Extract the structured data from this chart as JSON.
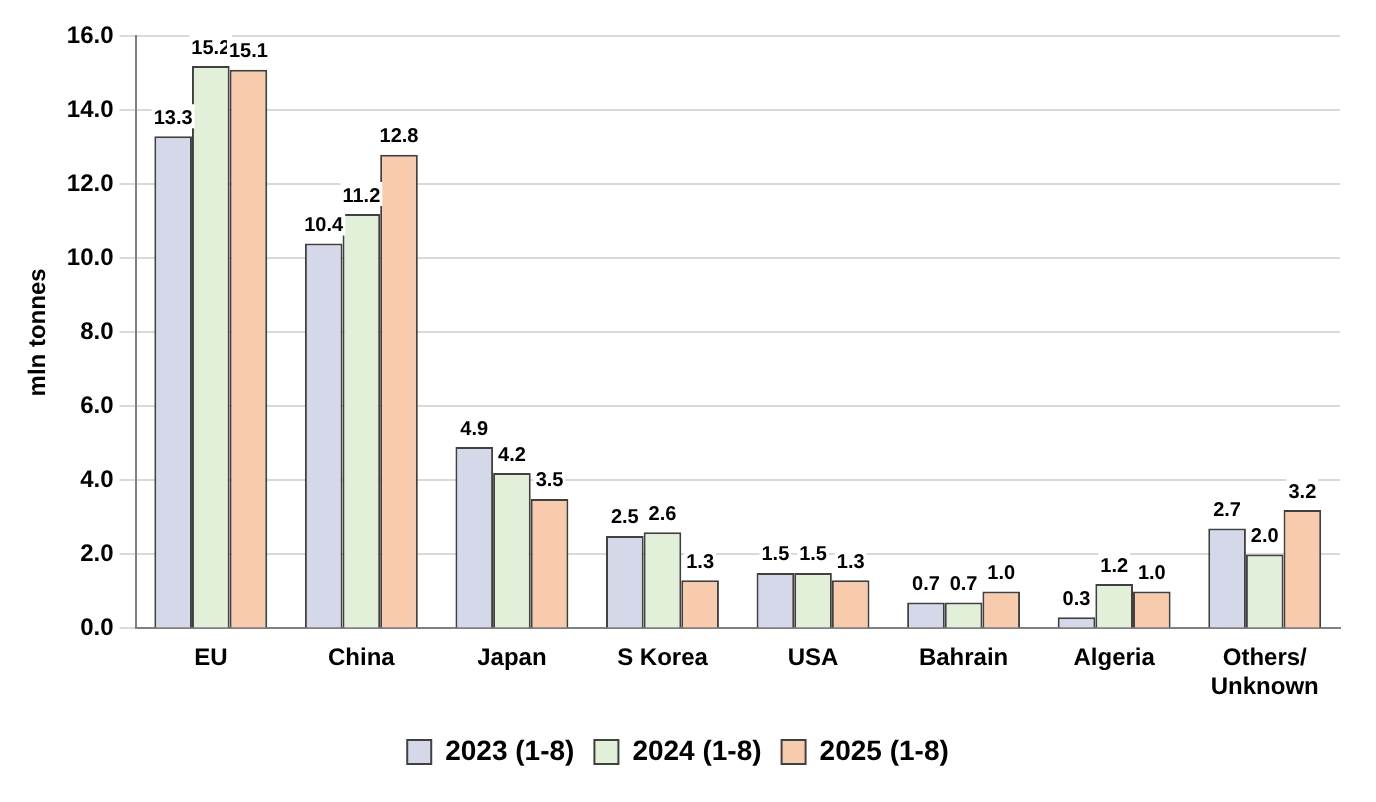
{
  "chart_data": {
    "type": "bar",
    "ylabel": "mln tonnes",
    "categories": [
      "EU",
      "China",
      "Japan",
      "S Korea",
      "USA",
      "Bahrain",
      "Algeria",
      "Others/\nUnknown"
    ],
    "series": [
      {
        "name": "2023 (1-8)",
        "color": "#d4d8e8",
        "values": [
          13.3,
          10.4,
          4.9,
          2.5,
          1.5,
          0.7,
          0.3,
          2.7
        ],
        "value_labels": [
          "13.3",
          "10.4",
          "4.9",
          "2.5",
          "1.5",
          "0.7",
          "0.3",
          "2.7"
        ]
      },
      {
        "name": "2024 (1-8)",
        "color": "#e2f0d9",
        "values": [
          15.2,
          11.2,
          4.2,
          2.6,
          1.5,
          0.7,
          1.2,
          2.0
        ],
        "value_labels": [
          "15.2",
          "11.2",
          "4.2",
          "2.6",
          "1.5",
          "0.7",
          "1.2",
          "2.0"
        ]
      },
      {
        "name": "2025 (1-8)",
        "color": "#f8cbad",
        "values": [
          15.1,
          12.8,
          3.5,
          1.3,
          1.3,
          1.0,
          1.0,
          3.2
        ],
        "value_labels": [
          "15.1",
          "12.8",
          "3.5",
          "1.3",
          "1.3",
          "1.0",
          "1.0",
          "3.2"
        ]
      }
    ],
    "ylim": [
      0,
      16
    ],
    "yticks": [
      {
        "value": 0,
        "label": "0.0"
      },
      {
        "value": 2,
        "label": "2.0"
      },
      {
        "value": 4,
        "label": "4.0"
      },
      {
        "value": 6,
        "label": "6.0"
      },
      {
        "value": 8,
        "label": "8.0"
      },
      {
        "value": 10,
        "label": "10.0"
      },
      {
        "value": 12,
        "label": "12.0"
      },
      {
        "value": 14,
        "label": "14.0"
      },
      {
        "value": 16,
        "label": "16.0"
      }
    ],
    "grid": "y",
    "legend": "bottom"
  }
}
